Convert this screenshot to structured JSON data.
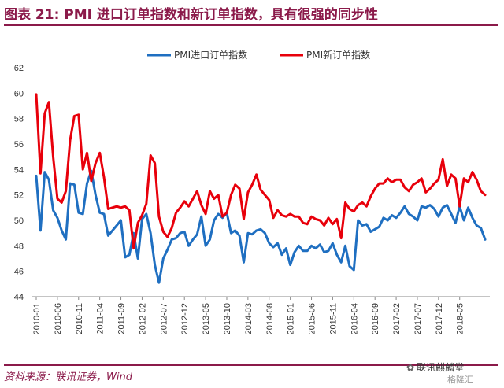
{
  "title": "图表 21: PMI 进口订单指数和新订单指数，具有很强的同步性",
  "source": "资料来源：联讯证券，Wind",
  "watermark": {
    "line1": "联讯麒麟堂",
    "line2": "格隆汇"
  },
  "colors": {
    "import": "#1f6fc1",
    "new": "#e8000b",
    "brand": "#8b1a4a"
  },
  "chart_data": {
    "type": "line",
    "title": "",
    "xlabel": "",
    "ylabel": "",
    "ylim": [
      44,
      62
    ],
    "yticks": [
      44,
      46,
      48,
      50,
      52,
      54,
      56,
      58,
      60,
      62
    ],
    "x_tick_labels": [
      "2010-01",
      "2010-06",
      "2010-11",
      "2011-04",
      "2011-09",
      "2012-02",
      "2012-07",
      "2012-12",
      "2013-05",
      "2013-10",
      "2014-03",
      "2014-08",
      "2015-01",
      "2015-06",
      "2015-11",
      "2016-04",
      "2016-09",
      "2017-02",
      "2017-07",
      "2017-12",
      "2018-05"
    ],
    "legend_position": "top",
    "grid": false,
    "series": [
      {
        "name": "PMI进口订单指数",
        "color": "#1f6fc1",
        "values": [
          53.5,
          49.2,
          53.8,
          53.2,
          50.8,
          50.2,
          49.2,
          48.5,
          52.9,
          52.8,
          50.6,
          50.5,
          52.9,
          53.9,
          52.0,
          50.6,
          50.5,
          48.8,
          49.2,
          49.6,
          50.0,
          47.1,
          47.3,
          49.0,
          47.0,
          50.1,
          50.5,
          49.0,
          46.5,
          45.1,
          47.0,
          47.7,
          48.5,
          48.6,
          49.0,
          49.1,
          48.0,
          48.5,
          48.9,
          50.3,
          48.0,
          48.5,
          50.0,
          50.5,
          50.2,
          50.6,
          49.0,
          49.2,
          48.8,
          46.7,
          49.0,
          48.9,
          49.2,
          49.3,
          49.0,
          48.2,
          47.9,
          48.2,
          47.3,
          47.8,
          46.5,
          47.5,
          48.0,
          47.6,
          47.6,
          48.0,
          47.8,
          48.1,
          47.5,
          47.6,
          48.2,
          47.3,
          46.7,
          48.0,
          46.4,
          46.1,
          50.0,
          49.6,
          49.7,
          49.1,
          49.3,
          49.5,
          50.2,
          50.0,
          50.4,
          50.2,
          50.6,
          51.1,
          50.5,
          50.3,
          50.0,
          51.1,
          51.0,
          51.2,
          50.9,
          50.3,
          51.0,
          51.2,
          50.5,
          49.8,
          51.1,
          50.0,
          51.0,
          50.2,
          49.6,
          49.4,
          48.5
        ]
      },
      {
        "name": "PMI新订单指数",
        "color": "#e8000b",
        "values": [
          59.9,
          53.7,
          58.4,
          59.3,
          55.0,
          51.7,
          51.4,
          52.3,
          56.3,
          58.2,
          58.3,
          54.0,
          55.3,
          53.1,
          54.5,
          55.3,
          53.4,
          50.9,
          51.0,
          51.1,
          51.0,
          51.1,
          50.8,
          47.8,
          49.8,
          50.4,
          51.3,
          55.1,
          54.5,
          50.3,
          49.1,
          48.7,
          49.4,
          50.6,
          51.0,
          51.5,
          51.1,
          51.7,
          52.3,
          51.2,
          50.5,
          52.3,
          51.7,
          52.0,
          50.3,
          50.6,
          52.0,
          52.8,
          52.5,
          50.1,
          52.2,
          52.8,
          53.6,
          52.4,
          52.0,
          51.6,
          50.2,
          50.8,
          50.4,
          50.3,
          50.5,
          50.3,
          50.3,
          49.8,
          49.7,
          50.3,
          50.1,
          50.0,
          49.6,
          50.2,
          49.7,
          50.1,
          48.6,
          51.4,
          50.9,
          50.7,
          51.2,
          51.4,
          51.1,
          51.9,
          52.5,
          52.9,
          52.9,
          53.3,
          53.0,
          53.2,
          53.2,
          52.6,
          52.3,
          52.8,
          53.0,
          53.3,
          52.2,
          52.5,
          52.9,
          53.2,
          54.8,
          52.7,
          53.6,
          53.3,
          51.1,
          53.3,
          53.0,
          53.8,
          53.2,
          52.3,
          52.0
        ]
      }
    ]
  }
}
